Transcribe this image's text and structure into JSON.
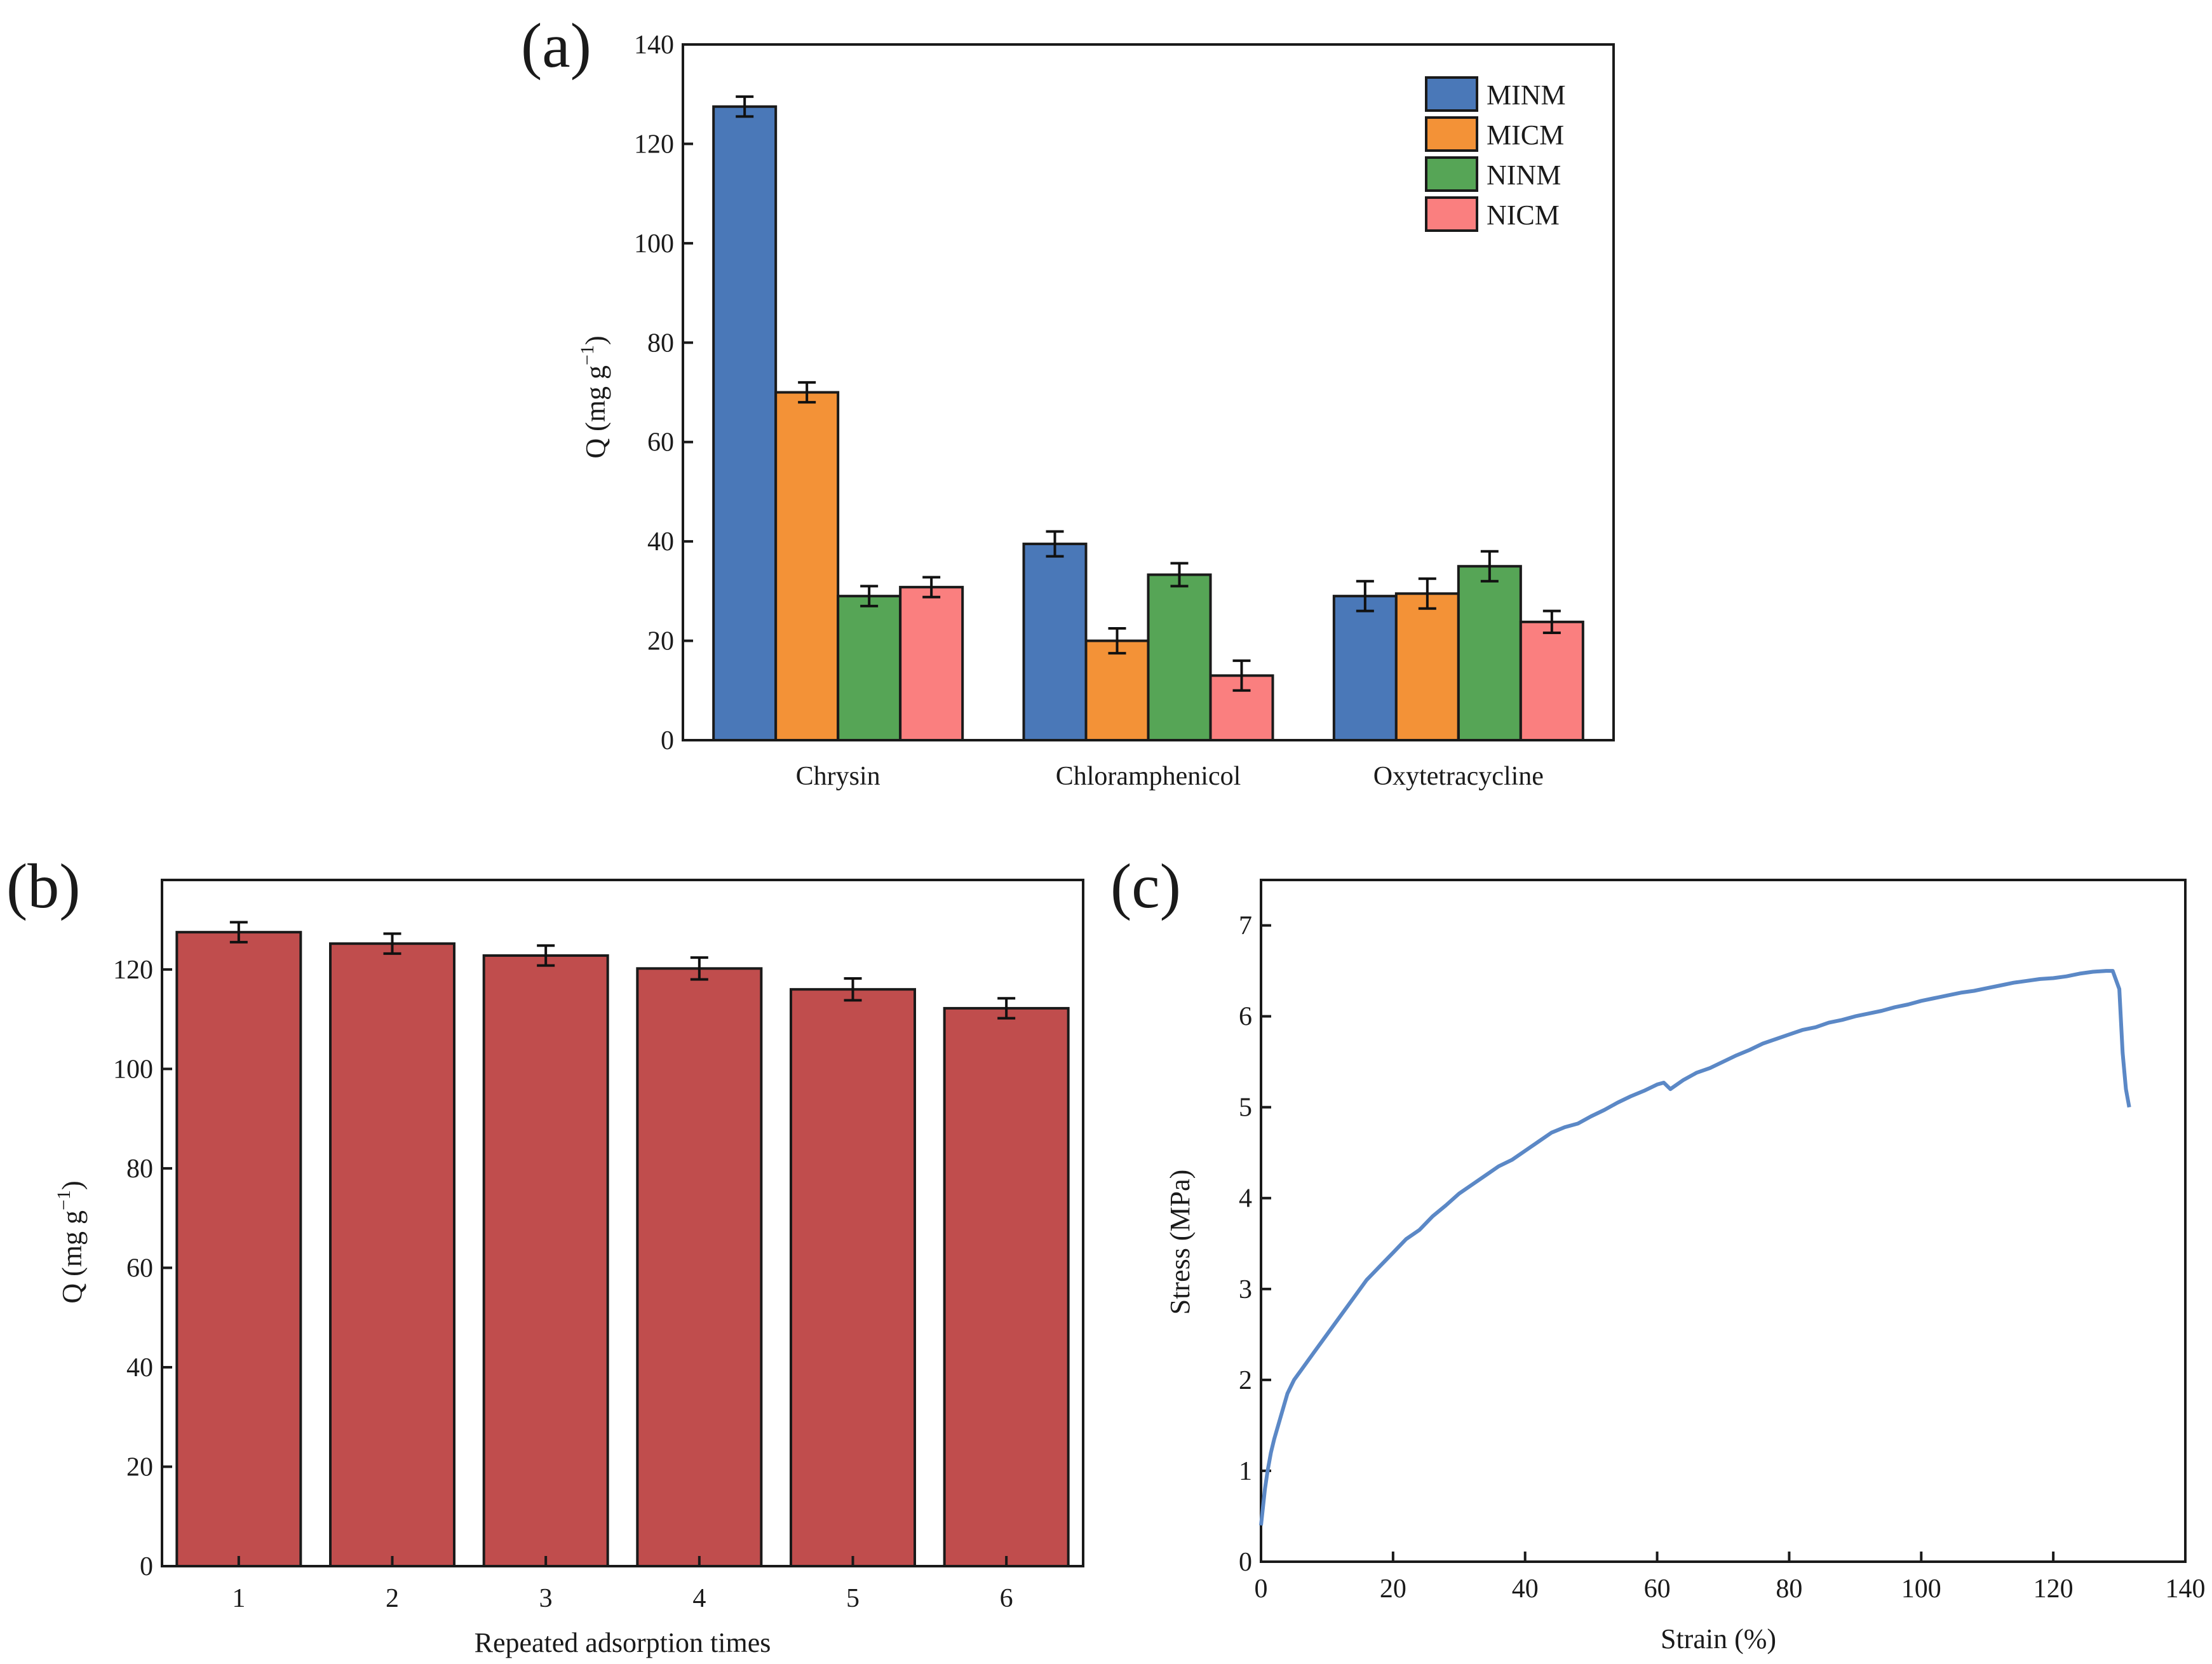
{
  "chart_data": [
    {
      "id": "a",
      "panel_label": "(a)",
      "type": "bar",
      "ylabel": "Q (mg g",
      "ylabel_sup": "−1",
      "ylabel_close": ")",
      "ylim": [
        0,
        140
      ],
      "yticks": [
        0,
        20,
        40,
        60,
        80,
        100,
        120,
        140
      ],
      "categories": [
        "Chrysin",
        "Chloramphenicol",
        "Oxytetracycline"
      ],
      "legend_position": "top-right",
      "series": [
        {
          "name": "MINM",
          "color": "#4a78b8",
          "values": [
            127.5,
            39.5,
            29
          ],
          "errors": [
            2,
            2.5,
            3
          ]
        },
        {
          "name": "MICM",
          "color": "#f39237",
          "values": [
            70,
            20,
            29.5
          ],
          "errors": [
            2,
            2.5,
            3
          ]
        },
        {
          "name": "NINM",
          "color": "#56a556",
          "values": [
            29,
            33.3,
            35
          ],
          "errors": [
            2,
            2.3,
            3
          ]
        },
        {
          "name": "NICM",
          "color": "#fa7f7f",
          "values": [
            30.8,
            13,
            23.8
          ],
          "errors": [
            2,
            3,
            2.2
          ]
        }
      ]
    },
    {
      "id": "b",
      "panel_label": "(b)",
      "type": "bar",
      "xlabel": "Repeated adsorption times",
      "ylabel": "Q (mg g",
      "ylabel_sup": "−1",
      "ylabel_close": ")",
      "ylim": [
        0,
        138
      ],
      "yticks": [
        0,
        20,
        40,
        60,
        80,
        100,
        120
      ],
      "categories": [
        "1",
        "2",
        "3",
        "4",
        "5",
        "6"
      ],
      "color": "#c04d4d",
      "values": [
        127.5,
        125.2,
        122.8,
        120.2,
        116,
        112.2
      ],
      "errors": [
        2,
        2,
        2,
        2.2,
        2.2,
        2
      ]
    },
    {
      "id": "c",
      "panel_label": "(c)",
      "type": "line",
      "xlabel": "Strain (%)",
      "ylabel": "Stress (MPa)",
      "xlim": [
        0,
        140
      ],
      "ylim": [
        0,
        7.5
      ],
      "xticks": [
        0,
        20,
        40,
        60,
        80,
        100,
        120,
        140
      ],
      "yticks": [
        0,
        1,
        2,
        3,
        4,
        5,
        6,
        7
      ],
      "color": "#5b88c6",
      "x": [
        0,
        0.3,
        0.6,
        1,
        1.5,
        2,
        3,
        4,
        5,
        6,
        8,
        10,
        12,
        14,
        16,
        18,
        20,
        22,
        24,
        26,
        28,
        30,
        32,
        34,
        36,
        38,
        40,
        42,
        44,
        46,
        48,
        50,
        52,
        54,
        56,
        58,
        60,
        61,
        62,
        64,
        66,
        68,
        70,
        72,
        74,
        76,
        78,
        80,
        82,
        84,
        86,
        88,
        90,
        92,
        94,
        96,
        98,
        100,
        102,
        104,
        106,
        108,
        110,
        112,
        114,
        116,
        118,
        120,
        122,
        124,
        126,
        128,
        129,
        130,
        130.5,
        131,
        131.5
      ],
      "y": [
        0.4,
        0.6,
        0.8,
        1.0,
        1.2,
        1.35,
        1.6,
        1.85,
        2.0,
        2.1,
        2.3,
        2.5,
        2.7,
        2.9,
        3.1,
        3.25,
        3.4,
        3.55,
        3.65,
        3.8,
        3.92,
        4.05,
        4.15,
        4.25,
        4.35,
        4.42,
        4.52,
        4.62,
        4.72,
        4.78,
        4.82,
        4.9,
        4.97,
        5.05,
        5.12,
        5.18,
        5.25,
        5.27,
        5.2,
        5.3,
        5.38,
        5.43,
        5.5,
        5.57,
        5.63,
        5.7,
        5.75,
        5.8,
        5.85,
        5.88,
        5.93,
        5.96,
        6.0,
        6.03,
        6.06,
        6.1,
        6.13,
        6.17,
        6.2,
        6.23,
        6.26,
        6.28,
        6.31,
        6.34,
        6.37,
        6.39,
        6.41,
        6.42,
        6.44,
        6.47,
        6.49,
        6.5,
        6.5,
        6.3,
        5.6,
        5.2,
        5.0
      ]
    }
  ]
}
